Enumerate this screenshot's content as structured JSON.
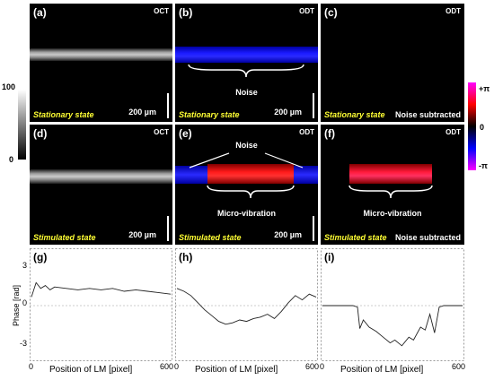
{
  "panels": {
    "a": {
      "label": "(a)",
      "modality": "OCT",
      "state": "Stationary state",
      "scale": "200 µm"
    },
    "b": {
      "label": "(b)",
      "modality": "ODT",
      "state": "Stationary state",
      "scale": "200 µm",
      "annotation": "Noise"
    },
    "c": {
      "label": "(c)",
      "modality": "ODT",
      "state": "Stationary state",
      "note": "Noise subtracted"
    },
    "d": {
      "label": "(d)",
      "modality": "OCT",
      "state": "Stimulated state",
      "scale": "200 µm"
    },
    "e": {
      "label": "(e)",
      "modality": "ODT",
      "state": "Stimulated state",
      "scale": "200 µm",
      "annotation_top": "Noise",
      "annotation_bottom": "Micro-vibration"
    },
    "f": {
      "label": "(f)",
      "modality": "ODT",
      "state": "Stimulated state",
      "note": "Noise subtracted",
      "annotation": "Micro-vibration"
    }
  },
  "gray_colorbar": {
    "max": "100",
    "min": "0"
  },
  "phase_colorbar": {
    "max": "+π",
    "mid": "0",
    "min": "-π",
    "colors": [
      "#ff00ff",
      "#ff0000",
      "#000000",
      "#0000ff",
      "#ff00ff"
    ]
  },
  "plots": {
    "g": {
      "label": "(g)"
    },
    "h": {
      "label": "(h)"
    },
    "i": {
      "label": "(i)"
    },
    "ylabel": "Phase [rad]",
    "xlabel": "Position of LM [pixel]",
    "yticks": [
      "3",
      "0",
      "-3"
    ],
    "xticks": [
      "0",
      "600"
    ]
  },
  "chart_data": {
    "type": "line",
    "x_range": [
      0,
      600
    ],
    "y_range": [
      -3.5,
      3.5
    ],
    "series": [
      {
        "panel": "g",
        "x": [
          0,
          20,
          40,
          60,
          80,
          100,
          150,
          200,
          250,
          300,
          350,
          400,
          450,
          500,
          550,
          600
        ],
        "y": [
          0.6,
          1.6,
          1.2,
          1.4,
          1.1,
          1.3,
          1.2,
          1.1,
          1.2,
          1.1,
          1.2,
          1.0,
          1.1,
          1.0,
          0.9,
          0.8
        ]
      },
      {
        "panel": "h",
        "x": [
          0,
          30,
          60,
          90,
          120,
          150,
          180,
          210,
          240,
          270,
          300,
          330,
          360,
          390,
          420,
          450,
          480,
          510,
          540,
          570,
          600
        ],
        "y": [
          1.2,
          1.0,
          0.7,
          0.2,
          -0.3,
          -0.7,
          -1.1,
          -1.3,
          -1.2,
          -1.0,
          -1.1,
          -0.9,
          -0.8,
          -0.6,
          -0.9,
          -0.4,
          0.2,
          0.7,
          0.4,
          0.8,
          0.6
        ]
      },
      {
        "panel": "i",
        "x": [
          0,
          50,
          100,
          130,
          150,
          160,
          175,
          200,
          230,
          260,
          290,
          310,
          340,
          370,
          390,
          420,
          440,
          460,
          480,
          500,
          520,
          560,
          600
        ],
        "y": [
          0,
          0,
          0,
          0,
          -0.1,
          -1.6,
          -1.0,
          -1.5,
          -1.8,
          -2.2,
          -2.6,
          -2.4,
          -2.8,
          -2.2,
          -2.4,
          -1.5,
          -1.7,
          -0.6,
          -1.9,
          -0.1,
          0,
          0,
          0
        ]
      }
    ]
  }
}
